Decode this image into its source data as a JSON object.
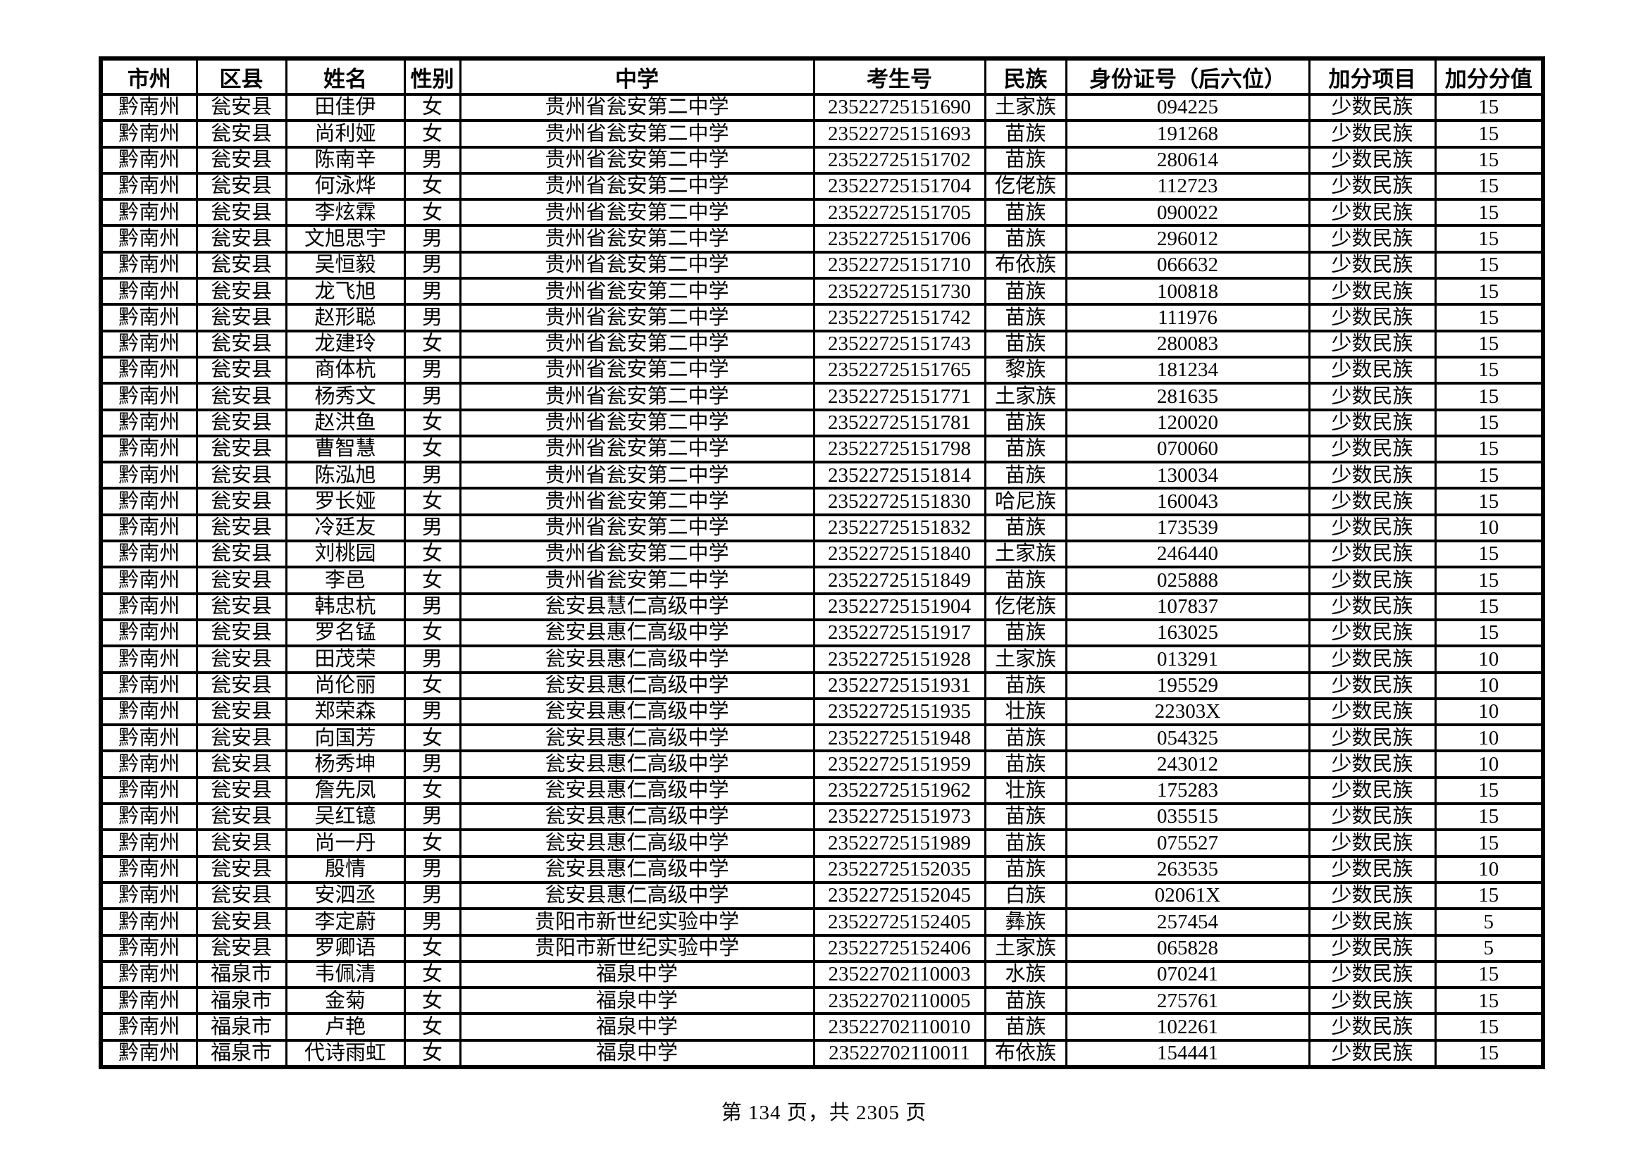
{
  "document": {
    "footer": "第 134 页，共 2305 页"
  },
  "colors": {
    "text": "#000000",
    "background": "#ffffff",
    "border": "#000000"
  },
  "table": {
    "headers": [
      "市州",
      "区县",
      "姓名",
      "性别",
      "中学",
      "考生号",
      "民族",
      "身份证号（后六位）",
      "加分项目",
      "加分分值"
    ],
    "rows": [
      [
        "黔南州",
        "瓮安县",
        "田佳伊",
        "女",
        "贵州省瓮安第二中学",
        "23522725151690",
        "土家族",
        "094225",
        "少数民族",
        "15"
      ],
      [
        "黔南州",
        "瓮安县",
        "尚利娅",
        "女",
        "贵州省瓮安第二中学",
        "23522725151693",
        "苗族",
        "191268",
        "少数民族",
        "15"
      ],
      [
        "黔南州",
        "瓮安县",
        "陈南辛",
        "男",
        "贵州省瓮安第二中学",
        "23522725151702",
        "苗族",
        "280614",
        "少数民族",
        "15"
      ],
      [
        "黔南州",
        "瓮安县",
        "何泳烨",
        "女",
        "贵州省瓮安第二中学",
        "23522725151704",
        "仡佬族",
        "112723",
        "少数民族",
        "15"
      ],
      [
        "黔南州",
        "瓮安县",
        "李炫霖",
        "女",
        "贵州省瓮安第二中学",
        "23522725151705",
        "苗族",
        "090022",
        "少数民族",
        "15"
      ],
      [
        "黔南州",
        "瓮安县",
        "文旭思宇",
        "男",
        "贵州省瓮安第二中学",
        "23522725151706",
        "苗族",
        "296012",
        "少数民族",
        "15"
      ],
      [
        "黔南州",
        "瓮安县",
        "吴恒毅",
        "男",
        "贵州省瓮安第二中学",
        "23522725151710",
        "布依族",
        "066632",
        "少数民族",
        "15"
      ],
      [
        "黔南州",
        "瓮安县",
        "龙飞旭",
        "男",
        "贵州省瓮安第二中学",
        "23522725151730",
        "苗族",
        "100818",
        "少数民族",
        "15"
      ],
      [
        "黔南州",
        "瓮安县",
        "赵形聪",
        "男",
        "贵州省瓮安第二中学",
        "23522725151742",
        "苗族",
        "111976",
        "少数民族",
        "15"
      ],
      [
        "黔南州",
        "瓮安县",
        "龙建玲",
        "女",
        "贵州省瓮安第二中学",
        "23522725151743",
        "苗族",
        "280083",
        "少数民族",
        "15"
      ],
      [
        "黔南州",
        "瓮安县",
        "商体杭",
        "男",
        "贵州省瓮安第二中学",
        "23522725151765",
        "黎族",
        "181234",
        "少数民族",
        "15"
      ],
      [
        "黔南州",
        "瓮安县",
        "杨秀文",
        "男",
        "贵州省瓮安第二中学",
        "23522725151771",
        "土家族",
        "281635",
        "少数民族",
        "15"
      ],
      [
        "黔南州",
        "瓮安县",
        "赵洪鱼",
        "女",
        "贵州省瓮安第二中学",
        "23522725151781",
        "苗族",
        "120020",
        "少数民族",
        "15"
      ],
      [
        "黔南州",
        "瓮安县",
        "曹智慧",
        "女",
        "贵州省瓮安第二中学",
        "23522725151798",
        "苗族",
        "070060",
        "少数民族",
        "15"
      ],
      [
        "黔南州",
        "瓮安县",
        "陈泓旭",
        "男",
        "贵州省瓮安第二中学",
        "23522725151814",
        "苗族",
        "130034",
        "少数民族",
        "15"
      ],
      [
        "黔南州",
        "瓮安县",
        "罗长娅",
        "女",
        "贵州省瓮安第二中学",
        "23522725151830",
        "哈尼族",
        "160043",
        "少数民族",
        "15"
      ],
      [
        "黔南州",
        "瓮安县",
        "冷廷友",
        "男",
        "贵州省瓮安第二中学",
        "23522725151832",
        "苗族",
        "173539",
        "少数民族",
        "10"
      ],
      [
        "黔南州",
        "瓮安县",
        "刘桃园",
        "女",
        "贵州省瓮安第二中学",
        "23522725151840",
        "土家族",
        "246440",
        "少数民族",
        "15"
      ],
      [
        "黔南州",
        "瓮安县",
        "李邑",
        "女",
        "贵州省瓮安第二中学",
        "23522725151849",
        "苗族",
        "025888",
        "少数民族",
        "15"
      ],
      [
        "黔南州",
        "瓮安县",
        "韩忠杭",
        "男",
        "瓮安县慧仁高级中学",
        "23522725151904",
        "仡佬族",
        "107837",
        "少数民族",
        "15"
      ],
      [
        "黔南州",
        "瓮安县",
        "罗名锰",
        "女",
        "瓮安县惠仁高级中学",
        "23522725151917",
        "苗族",
        "163025",
        "少数民族",
        "15"
      ],
      [
        "黔南州",
        "瓮安县",
        "田茂荣",
        "男",
        "瓮安县惠仁高级中学",
        "23522725151928",
        "土家族",
        "013291",
        "少数民族",
        "10"
      ],
      [
        "黔南州",
        "瓮安县",
        "尚伦丽",
        "女",
        "瓮安县惠仁高级中学",
        "23522725151931",
        "苗族",
        "195529",
        "少数民族",
        "10"
      ],
      [
        "黔南州",
        "瓮安县",
        "郑荣森",
        "男",
        "瓮安县惠仁高级中学",
        "23522725151935",
        "壮族",
        "22303X",
        "少数民族",
        "10"
      ],
      [
        "黔南州",
        "瓮安县",
        "向国芳",
        "女",
        "瓮安县惠仁高级中学",
        "23522725151948",
        "苗族",
        "054325",
        "少数民族",
        "10"
      ],
      [
        "黔南州",
        "瓮安县",
        "杨秀坤",
        "男",
        "瓮安县惠仁高级中学",
        "23522725151959",
        "苗族",
        "243012",
        "少数民族",
        "10"
      ],
      [
        "黔南州",
        "瓮安县",
        "詹先凤",
        "女",
        "瓮安县惠仁高级中学",
        "23522725151962",
        "壮族",
        "175283",
        "少数民族",
        "15"
      ],
      [
        "黔南州",
        "瓮安县",
        "吴红镱",
        "男",
        "瓮安县惠仁高级中学",
        "23522725151973",
        "苗族",
        "035515",
        "少数民族",
        "15"
      ],
      [
        "黔南州",
        "瓮安县",
        "尚一丹",
        "女",
        "瓮安县惠仁高级中学",
        "23522725151989",
        "苗族",
        "075527",
        "少数民族",
        "15"
      ],
      [
        "黔南州",
        "瓮安县",
        "殷情",
        "男",
        "瓮安县惠仁高级中学",
        "23522725152035",
        "苗族",
        "263535",
        "少数民族",
        "10"
      ],
      [
        "黔南州",
        "瓮安县",
        "安泗丞",
        "男",
        "瓮安县惠仁高级中学",
        "23522725152045",
        "白族",
        "02061X",
        "少数民族",
        "15"
      ],
      [
        "黔南州",
        "瓮安县",
        "李定蔚",
        "男",
        "贵阳市新世纪实验中学",
        "23522725152405",
        "彝族",
        "257454",
        "少数民族",
        "5"
      ],
      [
        "黔南州",
        "瓮安县",
        "罗卿语",
        "女",
        "贵阳市新世纪实验中学",
        "23522725152406",
        "土家族",
        "065828",
        "少数民族",
        "5"
      ],
      [
        "黔南州",
        "福泉市",
        "韦佩清",
        "女",
        "福泉中学",
        "23522702110003",
        "水族",
        "070241",
        "少数民族",
        "15"
      ],
      [
        "黔南州",
        "福泉市",
        "金菊",
        "女",
        "福泉中学",
        "23522702110005",
        "苗族",
        "275761",
        "少数民族",
        "15"
      ],
      [
        "黔南州",
        "福泉市",
        "卢艳",
        "女",
        "福泉中学",
        "23522702110010",
        "苗族",
        "102261",
        "少数民族",
        "15"
      ],
      [
        "黔南州",
        "福泉市",
        "代诗雨虹",
        "女",
        "福泉中学",
        "23522702110011",
        "布依族",
        "154441",
        "少数民族",
        "15"
      ]
    ]
  }
}
